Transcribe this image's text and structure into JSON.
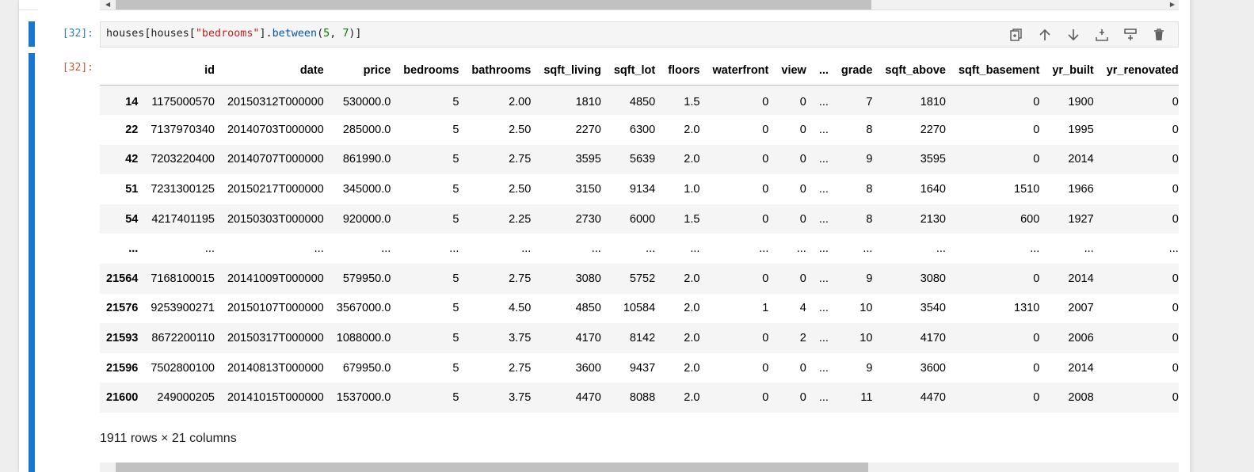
{
  "input_cell": {
    "prompt": "[32]:",
    "code_tokens": [
      {
        "text": "houses[houses[",
        "kind": "plain"
      },
      {
        "text": "\"bedrooms\"",
        "kind": "str"
      },
      {
        "text": "].",
        "kind": "plain"
      },
      {
        "text": "between",
        "kind": "attr"
      },
      {
        "text": "(",
        "kind": "plain"
      },
      {
        "text": "5",
        "kind": "num"
      },
      {
        "text": ", ",
        "kind": "plain"
      },
      {
        "text": "7",
        "kind": "num"
      },
      {
        "text": ")]",
        "kind": "plain"
      }
    ]
  },
  "toolbar": {
    "icons": [
      "duplicate-icon",
      "move-up-icon",
      "move-down-icon",
      "insert-below-icon",
      "insert-above-icon",
      "delete-icon"
    ]
  },
  "output_cell": {
    "prompt": "[32]:",
    "summary": "1911 rows × 21 columns",
    "columns": [
      "",
      "id",
      "date",
      "price",
      "bedrooms",
      "bathrooms",
      "sqft_living",
      "sqft_lot",
      "floors",
      "waterfront",
      "view",
      "...",
      "grade",
      "sqft_above",
      "sqft_basement",
      "yr_built",
      "yr_renovated"
    ],
    "rows": [
      [
        "14",
        "1175000570",
        "20150312T000000",
        "530000.0",
        "5",
        "2.00",
        "1810",
        "4850",
        "1.5",
        "0",
        "0",
        "...",
        "7",
        "1810",
        "0",
        "1900",
        "0"
      ],
      [
        "22",
        "7137970340",
        "20140703T000000",
        "285000.0",
        "5",
        "2.50",
        "2270",
        "6300",
        "2.0",
        "0",
        "0",
        "...",
        "8",
        "2270",
        "0",
        "1995",
        "0"
      ],
      [
        "42",
        "7203220400",
        "20140707T000000",
        "861990.0",
        "5",
        "2.75",
        "3595",
        "5639",
        "2.0",
        "0",
        "0",
        "...",
        "9",
        "3595",
        "0",
        "2014",
        "0"
      ],
      [
        "51",
        "7231300125",
        "20150217T000000",
        "345000.0",
        "5",
        "2.50",
        "3150",
        "9134",
        "1.0",
        "0",
        "0",
        "...",
        "8",
        "1640",
        "1510",
        "1966",
        "0"
      ],
      [
        "54",
        "4217401195",
        "20150303T000000",
        "920000.0",
        "5",
        "2.25",
        "2730",
        "6000",
        "1.5",
        "0",
        "0",
        "...",
        "8",
        "2130",
        "600",
        "1927",
        "0"
      ],
      [
        "...",
        "...",
        "...",
        "...",
        "...",
        "...",
        "...",
        "...",
        "...",
        "...",
        "...",
        "...",
        "...",
        "...",
        "...",
        "...",
        "..."
      ],
      [
        "21564",
        "7168100015",
        "20141009T000000",
        "579950.0",
        "5",
        "2.75",
        "3080",
        "5752",
        "2.0",
        "0",
        "0",
        "...",
        "9",
        "3080",
        "0",
        "2014",
        "0"
      ],
      [
        "21576",
        "9253900271",
        "20150107T000000",
        "3567000.0",
        "5",
        "4.50",
        "4850",
        "10584",
        "2.0",
        "1",
        "4",
        "...",
        "10",
        "3540",
        "1310",
        "2007",
        "0"
      ],
      [
        "21593",
        "8672200110",
        "20150317T000000",
        "1088000.0",
        "5",
        "3.75",
        "4170",
        "8142",
        "2.0",
        "0",
        "2",
        "...",
        "10",
        "4170",
        "0",
        "2006",
        "0"
      ],
      [
        "21596",
        "7502800100",
        "20140813T000000",
        "679950.0",
        "5",
        "2.75",
        "3600",
        "9437",
        "2.0",
        "0",
        "0",
        "...",
        "9",
        "3600",
        "0",
        "2014",
        "0"
      ],
      [
        "21600",
        "249000205",
        "20141015T000000",
        "1537000.0",
        "5",
        "3.75",
        "4470",
        "8088",
        "2.0",
        "0",
        "0",
        "...",
        "11",
        "4470",
        "0",
        "2008",
        "0"
      ]
    ]
  },
  "colors": {
    "collapser": "#1976d2",
    "in_prompt": "#307fc1",
    "out_prompt": "#bf5b3d",
    "string": "#ba2121",
    "number": "#008000"
  }
}
